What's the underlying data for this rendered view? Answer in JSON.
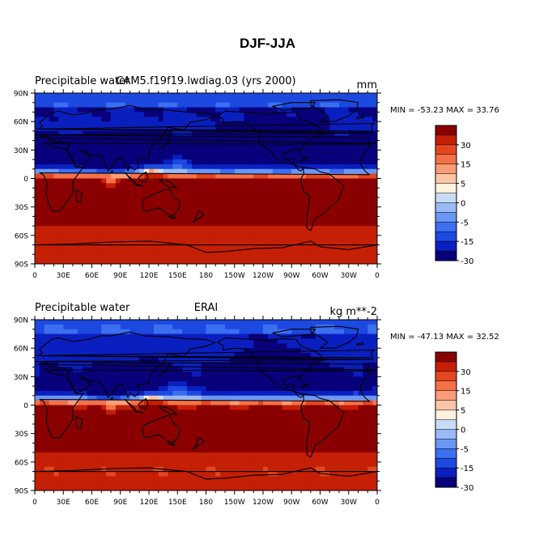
{
  "title": "DJF-JJA",
  "colors": {
    "levels": [
      "#08007a",
      "#0a1fbf",
      "#1c49df",
      "#3b6ff0",
      "#6a97f5",
      "#9ab9f7",
      "#c8dcf8",
      "#fff1df",
      "#fcc6a6",
      "#f99d77",
      "#f5714a",
      "#e4471f",
      "#c51f06",
      "#8a0000"
    ],
    "coast": "#000000"
  },
  "chart_data": [
    {
      "type": "heatmap",
      "left_title": "Precipitable water",
      "center_title": "CAM5.f19f19.lwdiag.03 (yrs 2000)",
      "units": "mm",
      "min_max_text": "MIN = -53.23 MAX =  33.76",
      "min": -53.23,
      "max": 33.76,
      "x_ticks": [
        "0",
        "30E",
        "60E",
        "90E",
        "120E",
        "150E",
        "180",
        "150W",
        "120W",
        "90W",
        "60W",
        "30W",
        "0"
      ],
      "y_ticks": [
        "90N",
        "60N",
        "30N",
        "0",
        "30S",
        "60S",
        "90S"
      ],
      "xlim": [
        0,
        360
      ],
      "ylim": [
        -90,
        90
      ],
      "colorbar_labels": [
        "30",
        "15",
        "5",
        "0",
        "-5",
        "-15",
        "-30"
      ],
      "colorbar_levels": [
        -40,
        -30,
        -20,
        -15,
        -10,
        -5,
        -1,
        1,
        5,
        10,
        15,
        20,
        30,
        40
      ],
      "intensity": 1.0
    },
    {
      "type": "heatmap",
      "left_title": "Precipitable water",
      "center_title": "ERAI",
      "units": "kg m**-2",
      "min_max_text": "MIN = -47.13 MAX =  32.52",
      "min": -47.13,
      "max": 32.52,
      "x_ticks": [
        "0",
        "30E",
        "60E",
        "90E",
        "120E",
        "150E",
        "180",
        "150W",
        "120W",
        "90W",
        "60W",
        "30W",
        "0"
      ],
      "y_ticks": [
        "90N",
        "60N",
        "30N",
        "0",
        "30S",
        "60S",
        "90S"
      ],
      "xlim": [
        0,
        360
      ],
      "ylim": [
        -90,
        90
      ],
      "colorbar_labels": [
        "30",
        "15",
        "5",
        "0",
        "-5",
        "-15",
        "-30"
      ],
      "colorbar_levels": [
        -40,
        -30,
        -20,
        -15,
        -10,
        -5,
        -1,
        1,
        5,
        10,
        15,
        20,
        30,
        40
      ],
      "intensity": 0.92
    }
  ]
}
